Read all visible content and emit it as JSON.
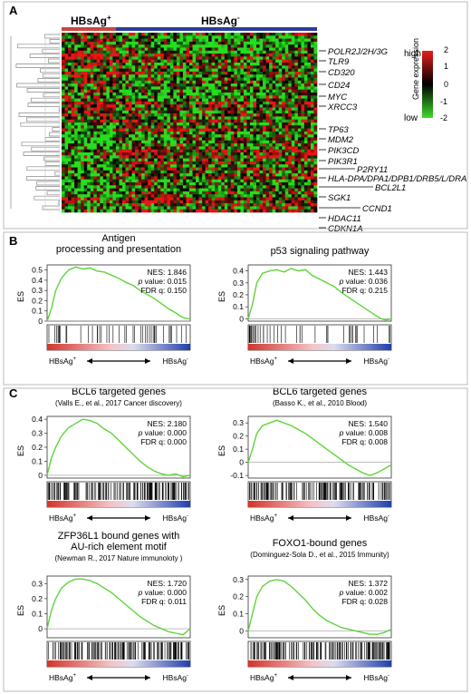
{
  "panel_labels": {
    "a": "A",
    "b": "B",
    "c": "C"
  },
  "heatmap": {
    "group_pos": "HBsAg",
    "group_neg": "HBsAg",
    "sup_pos": "+",
    "sup_neg": "-",
    "gene_labels": [
      "POLR2J/2H/3G",
      "TLR9",
      "CD320",
      "CD24",
      "MYC",
      "XRCC3",
      "TP63",
      "MDM2",
      "PIK3CD",
      "PIK3R1",
      "P2RY11",
      "HLA-DPA/DPA1/DPB1/DRB5/L/DRA",
      "BCL2L1",
      "SGK1",
      "CCND1",
      "HDAC11",
      "CDKN1A"
    ],
    "legend": {
      "high": "high",
      "low": "low",
      "title": "Gene expression",
      "ticks": [
        "2",
        "1",
        "0",
        "-1",
        "-2"
      ]
    }
  },
  "gsea_common": {
    "ylabel": "ES",
    "left": "HBsAg",
    "left_sup": "+",
    "right": "HBsAg",
    "right_sup": "-",
    "nes_label": "NES:",
    "p_label": "p",
    "p_suffix": "value:",
    "fdr_label": "FDR q:"
  },
  "chart_data": [
    {
      "type": "line",
      "panel": "B-left",
      "title_lines": [
        "Antigen",
        "processing and presentation"
      ],
      "ylim": [
        0,
        0.55
      ],
      "yticks": [
        "0.5",
        "0.4",
        "0.3",
        "0.2",
        "0.1",
        "0"
      ],
      "x": [
        0,
        0.03,
        0.06,
        0.1,
        0.15,
        0.2,
        0.25,
        0.3,
        0.35,
        0.4,
        0.45,
        0.5,
        0.55,
        0.6,
        0.65,
        0.7,
        0.75,
        0.8,
        0.85,
        0.9,
        0.93,
        0.96,
        1.0
      ],
      "y": [
        0,
        0.12,
        0.3,
        0.42,
        0.5,
        0.53,
        0.51,
        0.52,
        0.49,
        0.48,
        0.45,
        0.42,
        0.38,
        0.35,
        0.3,
        0.26,
        0.22,
        0.17,
        0.12,
        0.08,
        0.05,
        0.03,
        0.02
      ],
      "stats": {
        "nes": "1.846",
        "p": "0.015",
        "fdr": "0.150"
      }
    },
    {
      "type": "line",
      "panel": "B-right",
      "title_lines": [
        "p53 signaling pathway"
      ],
      "ylim": [
        -0.02,
        0.45
      ],
      "yticks": [
        "0.4",
        "0.3",
        "0.2",
        "0.1",
        "0"
      ],
      "x": [
        0,
        0.03,
        0.06,
        0.1,
        0.15,
        0.2,
        0.25,
        0.3,
        0.35,
        0.4,
        0.45,
        0.5,
        0.55,
        0.6,
        0.65,
        0.7,
        0.75,
        0.8,
        0.85,
        0.9,
        0.93,
        0.96,
        1.0
      ],
      "y": [
        0,
        0.12,
        0.3,
        0.38,
        0.4,
        0.41,
        0.39,
        0.42,
        0.4,
        0.41,
        0.36,
        0.33,
        0.3,
        0.27,
        0.22,
        0.18,
        0.14,
        0.1,
        0.06,
        0.02,
        0.0,
        -0.01,
        0.0
      ],
      "stats": {
        "nes": "1.443",
        "p": "0.036",
        "fdr": "0.215"
      }
    },
    {
      "type": "line",
      "panel": "C-1",
      "title_lines": [
        "BCL6 targeted genes",
        "(Valls E., et al., 2017 Cancer discovery)"
      ],
      "ylim": [
        -0.02,
        0.42
      ],
      "yticks": [
        "0.4",
        "0.3",
        "0.2",
        "0.1",
        "0"
      ],
      "x": [
        0,
        0.03,
        0.06,
        0.1,
        0.15,
        0.2,
        0.25,
        0.3,
        0.35,
        0.4,
        0.45,
        0.5,
        0.55,
        0.6,
        0.65,
        0.7,
        0.75,
        0.8,
        0.85,
        0.9,
        0.95,
        1.0
      ],
      "y": [
        0,
        0.12,
        0.2,
        0.28,
        0.34,
        0.37,
        0.4,
        0.39,
        0.37,
        0.33,
        0.3,
        0.25,
        0.2,
        0.15,
        0.1,
        0.06,
        0.03,
        0.01,
        0.0,
        0.01,
        -0.01,
        0.0
      ],
      "stats": {
        "nes": "2.180",
        "p": "0.000",
        "fdr": "0.000"
      }
    },
    {
      "type": "line",
      "panel": "C-2",
      "title_lines": [
        "BCL6 targeted genes",
        "(Basso K., et al., 2010 Blood)"
      ],
      "ylim": [
        -0.12,
        0.35
      ],
      "yticks": [
        "0.3",
        "0.2",
        "0.1",
        "0",
        "-0.1"
      ],
      "x": [
        0,
        0.03,
        0.06,
        0.1,
        0.15,
        0.2,
        0.25,
        0.3,
        0.35,
        0.4,
        0.45,
        0.5,
        0.55,
        0.6,
        0.65,
        0.7,
        0.75,
        0.8,
        0.85,
        0.9,
        0.95,
        1.0
      ],
      "y": [
        0,
        0.1,
        0.22,
        0.28,
        0.3,
        0.32,
        0.3,
        0.28,
        0.25,
        0.22,
        0.18,
        0.14,
        0.1,
        0.06,
        0.02,
        -0.02,
        -0.05,
        -0.08,
        -0.1,
        -0.08,
        -0.05,
        -0.02
      ],
      "stats": {
        "nes": "1.540",
        "p": "0.008",
        "fdr": "0.008"
      }
    },
    {
      "type": "line",
      "panel": "C-3",
      "title_lines": [
        "ZFP36L1 bound genes with",
        "AU-rich element motif",
        "(Newman R., 2017 Nature immunoloty )"
      ],
      "ylim": [
        -0.06,
        0.35
      ],
      "yticks": [
        "0.3",
        "0.2",
        "0.1",
        "0"
      ],
      "x": [
        0,
        0.03,
        0.06,
        0.1,
        0.15,
        0.2,
        0.25,
        0.3,
        0.35,
        0.4,
        0.45,
        0.5,
        0.55,
        0.6,
        0.65,
        0.7,
        0.75,
        0.8,
        0.85,
        0.9,
        0.95,
        1.0
      ],
      "y": [
        0,
        0.12,
        0.2,
        0.27,
        0.31,
        0.33,
        0.33,
        0.32,
        0.3,
        0.27,
        0.24,
        0.2,
        0.16,
        0.12,
        0.08,
        0.05,
        0.02,
        0.0,
        -0.02,
        -0.03,
        -0.04,
        0.0
      ],
      "stats": {
        "nes": "1.720",
        "p": "0.000",
        "fdr": "0.011"
      }
    },
    {
      "type": "line",
      "panel": "C-4",
      "title_lines": [
        "FOXO1-bound genes",
        "(Dominguez-Sola D., et al., 2015 Immunity)"
      ],
      "ylim": [
        -0.04,
        0.32
      ],
      "yticks": [
        "0.3",
        "0.2",
        "0.1",
        "0"
      ],
      "x": [
        0,
        0.03,
        0.06,
        0.1,
        0.15,
        0.2,
        0.25,
        0.3,
        0.35,
        0.4,
        0.45,
        0.5,
        0.55,
        0.6,
        0.65,
        0.7,
        0.75,
        0.8,
        0.85,
        0.9,
        0.95,
        1.0
      ],
      "y": [
        0,
        0.1,
        0.2,
        0.26,
        0.29,
        0.3,
        0.29,
        0.26,
        0.22,
        0.18,
        0.13,
        0.09,
        0.06,
        0.04,
        0.02,
        0.01,
        0.0,
        -0.01,
        -0.02,
        -0.02,
        -0.01,
        0.01
      ],
      "stats": {
        "nes": "1.372",
        "p": "0.002",
        "fdr": "0.028"
      }
    }
  ],
  "colors": {
    "curve": "#5fd43a",
    "pos_bar": "#c84640",
    "neg_bar": "#2b3d9a",
    "high": "#e02020",
    "low": "#3ddc2a"
  }
}
